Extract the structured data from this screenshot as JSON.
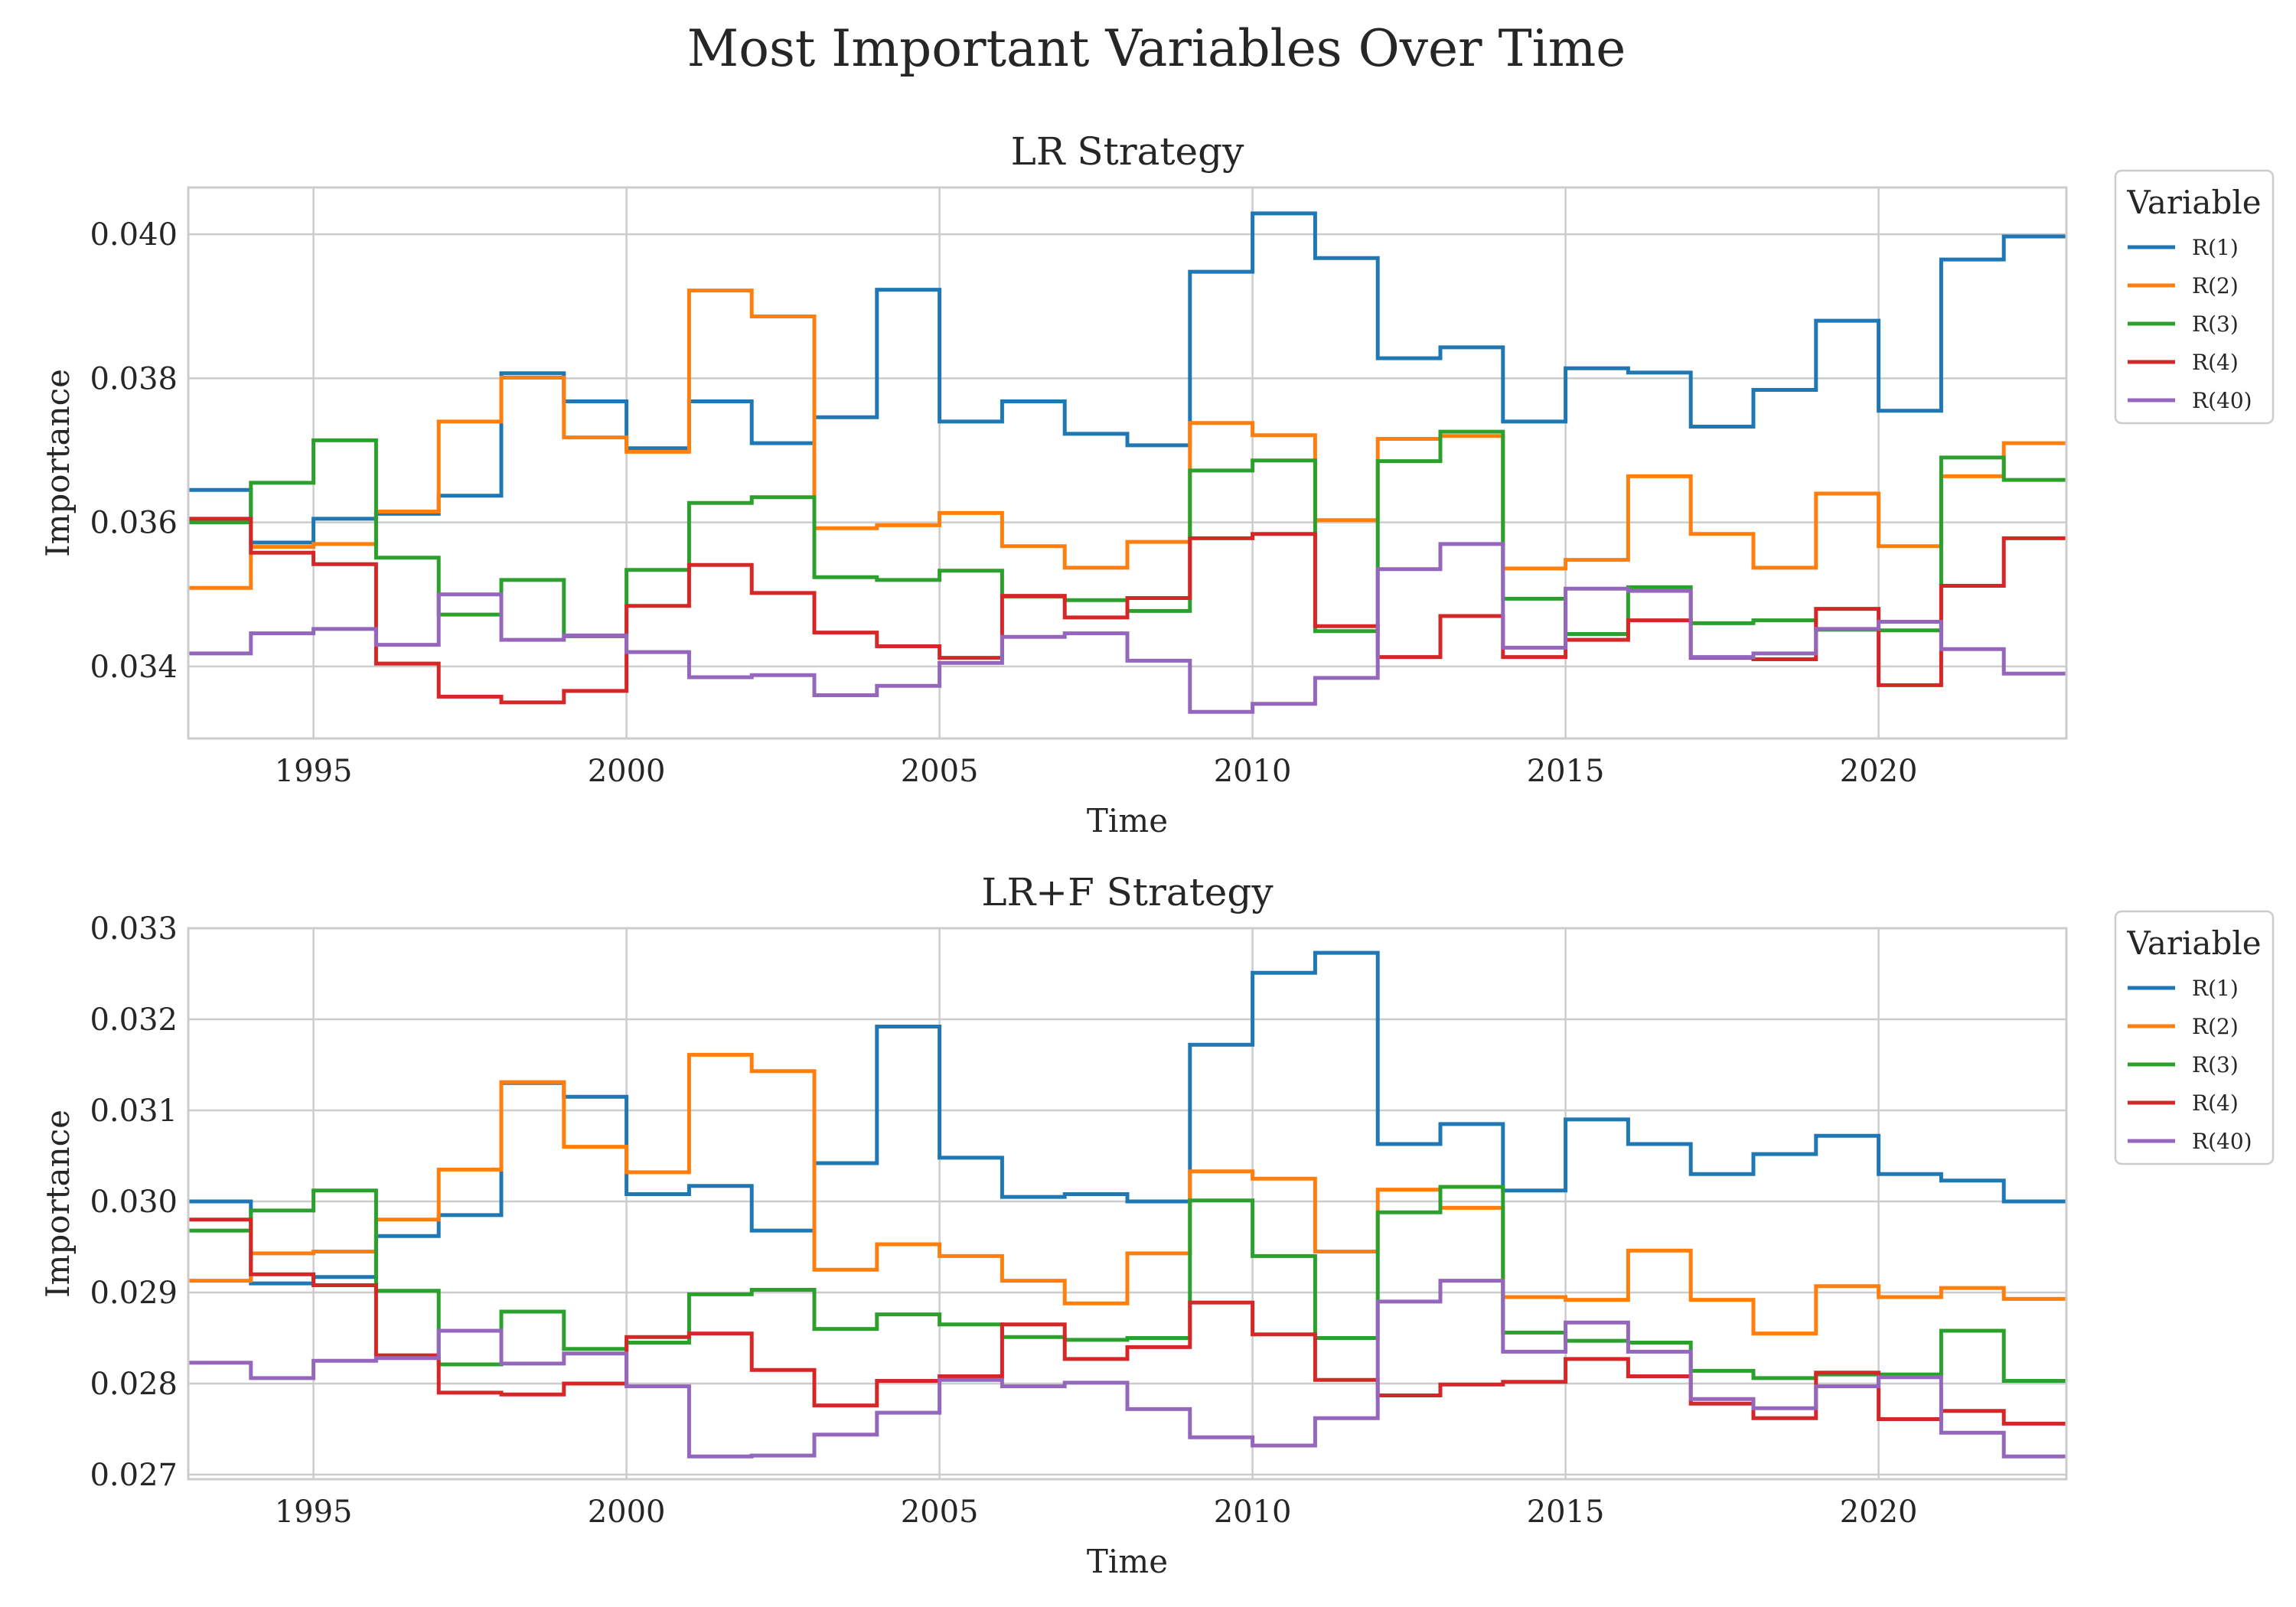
{
  "figure": {
    "suptitle": "Most Important Variables Over Time"
  },
  "chart_data": [
    {
      "type": "line",
      "drawstyle": "steps-post",
      "title": "LR Strategy",
      "xlabel": "Time",
      "ylabel": "Importance",
      "xlim": [
        1993,
        2023
      ],
      "ylim": [
        0.033,
        0.04065
      ],
      "xticks": [
        1995,
        2000,
        2005,
        2010,
        2015,
        2020
      ],
      "xtick_labels": [
        "1995",
        "2000",
        "2005",
        "2010",
        "2015",
        "2020"
      ],
      "yticks": [
        0.034,
        0.036,
        0.038,
        0.04
      ],
      "ytick_labels": [
        "0.034",
        "0.036",
        "0.038",
        "0.040"
      ],
      "grid": true,
      "legend": {
        "title": "Variable",
        "placement": "outside-right"
      },
      "x": [
        1993,
        1994,
        1995,
        1996,
        1997,
        1998,
        1999,
        2000,
        2001,
        2002,
        2003,
        2004,
        2005,
        2006,
        2007,
        2008,
        2009,
        2010,
        2011,
        2012,
        2013,
        2014,
        2015,
        2016,
        2017,
        2018,
        2019,
        2020,
        2021,
        2022,
        2023
      ],
      "series": [
        {
          "name": "R(1)",
          "color": "#1f77b4",
          "values": [
            0.03645,
            0.03572,
            0.03605,
            0.03612,
            0.03637,
            0.03807,
            0.03768,
            0.03703,
            0.03768,
            0.0371,
            0.03746,
            0.03923,
            0.0374,
            0.03768,
            0.03723,
            0.03707,
            0.03948,
            0.04029,
            0.03967,
            0.03828,
            0.03843,
            0.0374,
            0.03814,
            0.03808,
            0.03733,
            0.03784,
            0.0388,
            0.03755,
            0.03965,
            0.03997,
            0.03997
          ]
        },
        {
          "name": "R(2)",
          "color": "#ff7f0e",
          "values": [
            0.03509,
            0.03566,
            0.0357,
            0.03615,
            0.0374,
            0.03801,
            0.03718,
            0.03698,
            0.03922,
            0.03886,
            0.03592,
            0.03596,
            0.03613,
            0.03567,
            0.03537,
            0.03573,
            0.03738,
            0.03721,
            0.03603,
            0.03716,
            0.0372,
            0.03536,
            0.03548,
            0.03664,
            0.03584,
            0.03537,
            0.0364,
            0.03567,
            0.03664,
            0.0371,
            0.0371
          ]
        },
        {
          "name": "R(3)",
          "color": "#2ca02c",
          "values": [
            0.036,
            0.03655,
            0.03714,
            0.03551,
            0.03472,
            0.0352,
            0.03442,
            0.03534,
            0.03627,
            0.03635,
            0.03524,
            0.0352,
            0.03533,
            0.03497,
            0.03492,
            0.03477,
            0.03672,
            0.03686,
            0.03449,
            0.03685,
            0.03726,
            0.03494,
            0.03445,
            0.0351,
            0.0346,
            0.03464,
            0.03451,
            0.0345,
            0.0369,
            0.03659,
            0.03659
          ]
        },
        {
          "name": "R(4)",
          "color": "#d62728",
          "values": [
            0.03605,
            0.03558,
            0.03542,
            0.03404,
            0.03358,
            0.0335,
            0.03366,
            0.03484,
            0.03541,
            0.03502,
            0.03447,
            0.03428,
            0.03412,
            0.03498,
            0.03468,
            0.03495,
            0.03578,
            0.03584,
            0.03456,
            0.03413,
            0.0347,
            0.03413,
            0.03437,
            0.03464,
            0.03412,
            0.0341,
            0.0348,
            0.03374,
            0.03512,
            0.03578,
            0.03578
          ]
        },
        {
          "name": "R(40)",
          "color": "#9467bd",
          "values": [
            0.03418,
            0.03446,
            0.03452,
            0.0343,
            0.035,
            0.03437,
            0.03443,
            0.0342,
            0.03385,
            0.03388,
            0.0336,
            0.03373,
            0.03405,
            0.03441,
            0.03446,
            0.03408,
            0.03337,
            0.03348,
            0.03384,
            0.03535,
            0.0357,
            0.03426,
            0.03508,
            0.03505,
            0.03413,
            0.03418,
            0.03452,
            0.03462,
            0.03424,
            0.0339,
            0.0339
          ]
        }
      ]
    },
    {
      "type": "line",
      "drawstyle": "steps-post",
      "title": "LR+F Strategy",
      "xlabel": "Time",
      "ylabel": "Importance",
      "xlim": [
        1993,
        2023
      ],
      "ylim": [
        0.02695,
        0.033
      ],
      "xticks": [
        1995,
        2000,
        2005,
        2010,
        2015,
        2020
      ],
      "xtick_labels": [
        "1995",
        "2000",
        "2005",
        "2010",
        "2015",
        "2020"
      ],
      "yticks": [
        0.027,
        0.028,
        0.029,
        0.03,
        0.031,
        0.032,
        0.033
      ],
      "ytick_labels": [
        "0.027",
        "0.028",
        "0.029",
        "0.030",
        "0.031",
        "0.032",
        "0.033"
      ],
      "grid": true,
      "legend": {
        "title": "Variable",
        "placement": "outside-right"
      },
      "x": [
        1993,
        1994,
        1995,
        1996,
        1997,
        1998,
        1999,
        2000,
        2001,
        2002,
        2003,
        2004,
        2005,
        2006,
        2007,
        2008,
        2009,
        2010,
        2011,
        2012,
        2013,
        2014,
        2015,
        2016,
        2017,
        2018,
        2019,
        2020,
        2021,
        2022,
        2023
      ],
      "series": [
        {
          "name": "R(1)",
          "color": "#1f77b4",
          "values": [
            0.03,
            0.0291,
            0.02917,
            0.02962,
            0.02985,
            0.0313,
            0.03115,
            0.03008,
            0.03017,
            0.02968,
            0.03042,
            0.03192,
            0.03048,
            0.03005,
            0.03008,
            0.03,
            0.03172,
            0.03251,
            0.03273,
            0.03063,
            0.03085,
            0.03012,
            0.0309,
            0.03063,
            0.0303,
            0.03052,
            0.03072,
            0.0303,
            0.03023,
            0.03,
            0.03
          ]
        },
        {
          "name": "R(2)",
          "color": "#ff7f0e",
          "values": [
            0.02913,
            0.02943,
            0.02945,
            0.0298,
            0.03035,
            0.03131,
            0.0306,
            0.03032,
            0.03161,
            0.03143,
            0.02925,
            0.02953,
            0.0294,
            0.02913,
            0.02888,
            0.02943,
            0.03033,
            0.03025,
            0.02945,
            0.03013,
            0.02993,
            0.02895,
            0.02892,
            0.02946,
            0.02892,
            0.02855,
            0.02907,
            0.02895,
            0.02905,
            0.02893,
            0.02893
          ]
        },
        {
          "name": "R(3)",
          "color": "#2ca02c",
          "values": [
            0.02968,
            0.0299,
            0.03012,
            0.02902,
            0.02821,
            0.02879,
            0.02838,
            0.02845,
            0.02898,
            0.02903,
            0.0286,
            0.02876,
            0.02865,
            0.02851,
            0.02848,
            0.0285,
            0.03001,
            0.0294,
            0.0285,
            0.02988,
            0.03016,
            0.02856,
            0.02847,
            0.02845,
            0.02814,
            0.02806,
            0.0281,
            0.0281,
            0.02858,
            0.02803,
            0.02803
          ]
        },
        {
          "name": "R(4)",
          "color": "#d62728",
          "values": [
            0.0298,
            0.0292,
            0.02908,
            0.02831,
            0.0279,
            0.02788,
            0.028,
            0.02851,
            0.02855,
            0.02815,
            0.02776,
            0.02803,
            0.02808,
            0.02865,
            0.02827,
            0.0284,
            0.02889,
            0.02854,
            0.02804,
            0.02787,
            0.02799,
            0.02802,
            0.02827,
            0.02808,
            0.02778,
            0.02762,
            0.02812,
            0.02761,
            0.0277,
            0.02756,
            0.02756
          ]
        },
        {
          "name": "R(40)",
          "color": "#9467bd",
          "values": [
            0.02823,
            0.02806,
            0.02825,
            0.02828,
            0.02858,
            0.02822,
            0.02833,
            0.02797,
            0.0272,
            0.02721,
            0.02744,
            0.02768,
            0.02804,
            0.02797,
            0.02801,
            0.02772,
            0.02741,
            0.02732,
            0.02762,
            0.0289,
            0.02913,
            0.02835,
            0.02867,
            0.02835,
            0.02783,
            0.02773,
            0.02797,
            0.02807,
            0.02746,
            0.0272,
            0.0272
          ]
        }
      ]
    }
  ]
}
